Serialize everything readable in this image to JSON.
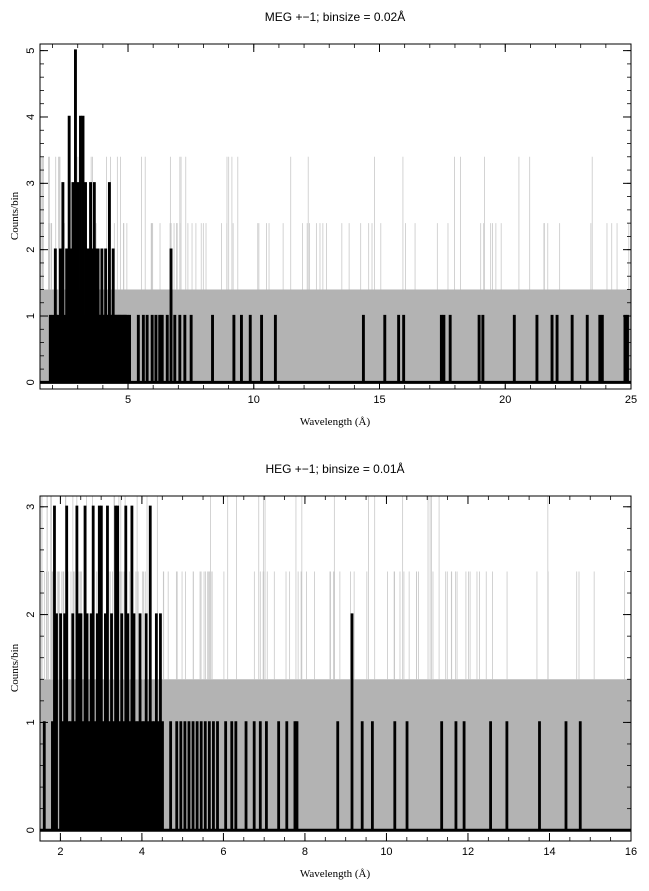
{
  "chart_data": [
    {
      "type": "line",
      "title": "MEG +−1; binsize = 0.02Å",
      "xlabel": "Wavelength (Å)",
      "ylabel": "Counts/bin",
      "xlim": [
        1.5,
        25
      ],
      "ylim": [
        -0.1,
        5.1
      ],
      "xticks": [
        5,
        10,
        15,
        20,
        25
      ],
      "yticks": [
        0,
        1,
        2,
        3,
        4,
        5
      ],
      "background_level": 1.4,
      "colors": {
        "counts": "#000000",
        "background": "#b3b3b3"
      },
      "series": [
        {
          "x": [
            1.9,
            2.0,
            2.1,
            2.15,
            2.2,
            2.3,
            2.35,
            2.4,
            2.5,
            2.55,
            2.6,
            2.65,
            2.7,
            2.75,
            2.8,
            2.85,
            2.9,
            2.95,
            3.0,
            3.05,
            3.1,
            3.15,
            3.2,
            3.25,
            3.3,
            3.35,
            3.4,
            3.45,
            3.5,
            3.55,
            3.6,
            3.65,
            3.7,
            3.75,
            3.8,
            3.85,
            3.9,
            3.95,
            4.0,
            4.05,
            4.1,
            4.15,
            4.2,
            4.25,
            4.3,
            4.35,
            4.4,
            4.45,
            4.5,
            4.55,
            4.6,
            4.65,
            4.7,
            4.75,
            4.8,
            4.85,
            4.9,
            4.95,
            5.05,
            5.4,
            5.6,
            5.75,
            5.95,
            6.1,
            6.25,
            6.35,
            6.55,
            6.7,
            6.85,
            7.05,
            7.25,
            7.5,
            8.35,
            9.2,
            9.5,
            9.85,
            10.3,
            10.85,
            14.35,
            15.2,
            15.75,
            15.95,
            17.45,
            17.55,
            17.8,
            18.95,
            19.1,
            20.35,
            21.25,
            21.85,
            22.05,
            22.65,
            23.25,
            23.75,
            23.85,
            24.75,
            24.85
          ],
          "values": [
            1,
            1,
            2,
            1,
            1,
            2,
            1,
            3,
            1,
            2,
            1,
            4,
            2,
            1,
            3,
            1,
            5,
            2,
            3,
            1,
            4,
            2,
            4,
            1,
            3,
            2,
            2,
            1,
            3,
            1,
            2,
            3,
            2,
            1,
            2,
            1,
            1,
            2,
            1,
            1,
            2,
            1,
            1,
            3,
            1,
            1,
            2,
            1,
            1,
            1,
            1,
            1,
            1,
            1,
            1,
            1,
            1,
            1,
            1,
            1,
            1,
            1,
            1,
            1,
            1,
            1,
            1,
            2,
            1,
            1,
            1,
            1,
            1,
            1,
            1,
            1,
            1,
            1,
            1,
            1,
            1,
            1,
            1,
            1,
            1,
            1,
            1,
            1,
            1,
            1,
            1,
            1,
            1,
            1,
            1,
            1,
            1
          ]
        }
      ]
    },
    {
      "type": "line",
      "title": "HEG +−1; binsize = 0.01Å",
      "xlabel": "Wavelength (Å)",
      "ylabel": "Counts/bin",
      "xlim": [
        1.5,
        16
      ],
      "ylim": [
        -0.1,
        3.1
      ],
      "xticks": [
        2,
        4,
        6,
        8,
        10,
        12,
        14,
        16
      ],
      "yticks": [
        0,
        1,
        2,
        3
      ],
      "background_level": 1.4,
      "colors": {
        "counts": "#000000",
        "background": "#b3b3b3"
      },
      "series": [
        {
          "x": [
            1.6,
            1.8,
            1.85,
            1.9,
            2.0,
            2.05,
            2.1,
            2.15,
            2.2,
            2.25,
            2.3,
            2.35,
            2.4,
            2.45,
            2.5,
            2.55,
            2.6,
            2.65,
            2.7,
            2.75,
            2.8,
            2.85,
            2.9,
            2.95,
            3.0,
            3.05,
            3.1,
            3.15,
            3.2,
            3.25,
            3.3,
            3.35,
            3.4,
            3.45,
            3.5,
            3.55,
            3.6,
            3.65,
            3.7,
            3.75,
            3.8,
            3.85,
            3.9,
            3.95,
            4.0,
            4.05,
            4.1,
            4.15,
            4.2,
            4.25,
            4.3,
            4.35,
            4.4,
            4.45,
            4.5,
            4.7,
            4.85,
            4.95,
            5.05,
            5.15,
            5.25,
            5.35,
            5.45,
            5.55,
            5.65,
            5.75,
            5.85,
            6.05,
            6.2,
            6.3,
            6.55,
            6.75,
            6.9,
            7.05,
            7.35,
            7.55,
            7.75,
            7.8,
            8.8,
            9.15,
            9.4,
            9.65,
            10.2,
            10.5,
            11.35,
            11.7,
            11.9,
            12.55,
            12.95,
            13.75,
            14.4,
            14.75
          ],
          "values": [
            1,
            1,
            3,
            2,
            2,
            1,
            2,
            3,
            1,
            1,
            2,
            1,
            3,
            2,
            2,
            1,
            3,
            2,
            1,
            2,
            3,
            1,
            2,
            3,
            3,
            1,
            2,
            3,
            1,
            2,
            1,
            3,
            3,
            1,
            2,
            1,
            3,
            2,
            1,
            3,
            2,
            1,
            1,
            2,
            1,
            1,
            2,
            1,
            3,
            1,
            1,
            2,
            1,
            2,
            1,
            1,
            1,
            1,
            1,
            1,
            1,
            1,
            1,
            1,
            1,
            1,
            1,
            1,
            1,
            1,
            1,
            1,
            1,
            1,
            1,
            1,
            1,
            1,
            1,
            2,
            1,
            1,
            1,
            1,
            1,
            1,
            1,
            1,
            1,
            1,
            1,
            1
          ]
        }
      ]
    }
  ]
}
